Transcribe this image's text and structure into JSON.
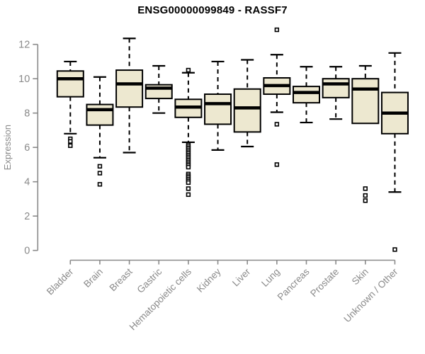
{
  "chart_data": {
    "type": "box",
    "title": "ENSG00000099849 - RASSF7",
    "ylabel": "Expression",
    "xlabel": "",
    "ylim": [
      0,
      12
    ],
    "yticks": [
      0,
      2,
      4,
      6,
      8,
      10,
      12
    ],
    "grid": false,
    "legend": false,
    "colors": {
      "box_fill": "#EDE8D0",
      "box_stroke": "#000000",
      "median": "#000000",
      "whisker": "#000000",
      "outlier_stroke": "#000000",
      "axis": "#8A8A8A",
      "tick_text": "#8A8A8A",
      "title_text": "#000000"
    },
    "categories": [
      {
        "label": "Bladder",
        "whislo": 6.8,
        "q1": 8.95,
        "med": 10.0,
        "q3": 10.45,
        "whishi": 11.0,
        "outliers": [
          6.5,
          6.35,
          6.1
        ]
      },
      {
        "label": "Brain",
        "whislo": 5.4,
        "q1": 7.3,
        "med": 8.2,
        "q3": 8.5,
        "whishi": 10.1,
        "outliers": [
          4.9,
          4.5,
          3.85
        ]
      },
      {
        "label": "Breast",
        "whislo": 5.7,
        "q1": 8.35,
        "med": 9.7,
        "q3": 10.5,
        "whishi": 12.35,
        "outliers": []
      },
      {
        "label": "Gastric",
        "whislo": 8.0,
        "q1": 8.85,
        "med": 9.45,
        "q3": 9.65,
        "whishi": 10.75,
        "outliers": []
      },
      {
        "label": "Hematopoietic cells",
        "whislo": 6.3,
        "q1": 7.75,
        "med": 8.35,
        "q3": 8.8,
        "whishi": 10.35,
        "outliers": [
          10.5,
          6.15,
          6.05,
          5.95,
          5.85,
          5.75,
          5.65,
          5.55,
          5.45,
          5.35,
          5.25,
          5.15,
          5.05,
          4.95,
          4.85,
          4.45,
          4.35,
          4.25,
          4.15,
          4.05,
          3.95,
          3.6,
          3.25
        ]
      },
      {
        "label": "Kidney",
        "whislo": 5.85,
        "q1": 7.35,
        "med": 8.55,
        "q3": 9.1,
        "whishi": 11.0,
        "outliers": []
      },
      {
        "label": "Liver",
        "whislo": 6.05,
        "q1": 6.9,
        "med": 8.3,
        "q3": 9.4,
        "whishi": 11.1,
        "outliers": []
      },
      {
        "label": "Lung",
        "whislo": 8.05,
        "q1": 9.1,
        "med": 9.6,
        "q3": 10.05,
        "whishi": 11.4,
        "outliers": [
          12.85,
          7.35,
          5.0
        ]
      },
      {
        "label": "Pancreas",
        "whislo": 7.45,
        "q1": 8.6,
        "med": 9.2,
        "q3": 9.55,
        "whishi": 10.7,
        "outliers": []
      },
      {
        "label": "Prostate",
        "whislo": 7.65,
        "q1": 8.9,
        "med": 9.7,
        "q3": 10.0,
        "whishi": 10.7,
        "outliers": []
      },
      {
        "label": "Skin",
        "whislo": 7.4,
        "q1": 7.4,
        "med": 9.4,
        "q3": 10.0,
        "whishi": 10.75,
        "outliers": [
          3.6,
          3.2,
          2.9
        ]
      },
      {
        "label": "Unknown / Other",
        "whislo": 3.4,
        "q1": 6.8,
        "med": 8.0,
        "q3": 9.2,
        "whishi": 11.5,
        "outliers": [
          0.05
        ]
      }
    ]
  }
}
